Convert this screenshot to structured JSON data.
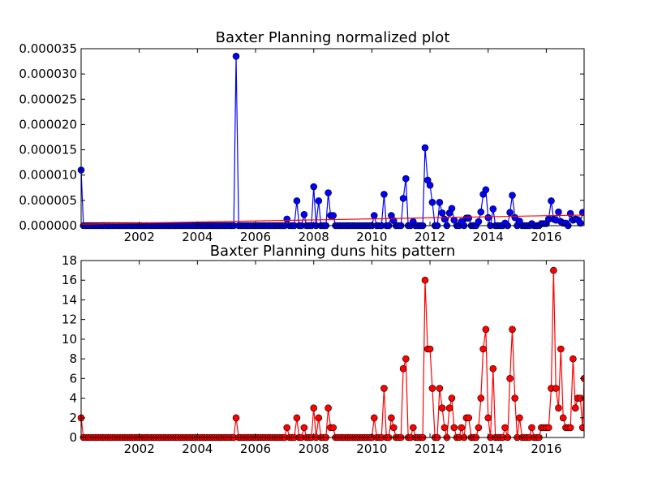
{
  "chart_data": [
    {
      "type": "line",
      "title": "Baxter Planning normalized plot",
      "xlabel": "",
      "ylabel": "",
      "xlim": [
        2000.0,
        2017.3
      ],
      "ylim": [
        0,
        3.5e-05
      ],
      "grid": false,
      "x_ticks": [
        2002,
        2004,
        2006,
        2008,
        2010,
        2012,
        2014,
        2016
      ],
      "y_ticks": [
        {
          "value": 0.0,
          "label": "0.000000"
        },
        {
          "value": 5e-06,
          "label": "0.000005"
        },
        {
          "value": 1e-05,
          "label": "0.000010"
        },
        {
          "value": 1.5e-05,
          "label": "0.000015"
        },
        {
          "value": 2e-05,
          "label": "0.000020"
        },
        {
          "value": 2.5e-05,
          "label": "0.000025"
        },
        {
          "value": 3e-05,
          "label": "0.000030"
        },
        {
          "value": 3.5e-05,
          "label": "0.000035"
        }
      ],
      "series": [
        {
          "color": "#0000ff",
          "marker": "circle",
          "points": [
            [
              2000.0,
              1.1e-05
            ],
            [
              2005.33,
              3.35e-05
            ],
            [
              2007.08,
              1.3e-06
            ],
            [
              2007.42,
              4.9e-06
            ],
            [
              2007.67,
              2.2e-06
            ],
            [
              2008.0,
              7.7e-06
            ],
            [
              2008.17,
              4.9e-06
            ],
            [
              2008.5,
              6.5e-06
            ],
            [
              2008.58,
              2e-06
            ],
            [
              2008.67,
              2e-06
            ],
            [
              2010.08,
              2e-06
            ],
            [
              2010.42,
              6.2e-06
            ],
            [
              2010.67,
              2e-06
            ],
            [
              2010.75,
              1e-06
            ],
            [
              2011.08,
              5.4e-06
            ],
            [
              2011.17,
              9.3e-06
            ],
            [
              2011.42,
              8e-07
            ],
            [
              2011.83,
              1.54e-05
            ],
            [
              2011.92,
              9e-06
            ],
            [
              2012.0,
              8e-06
            ],
            [
              2012.08,
              4.6e-06
            ],
            [
              2012.33,
              4.6e-06
            ],
            [
              2012.42,
              2.5e-06
            ],
            [
              2012.5,
              1.3e-06
            ],
            [
              2012.67,
              2.5e-06
            ],
            [
              2012.75,
              3.4e-06
            ],
            [
              2012.83,
              1.1e-06
            ],
            [
              2013.08,
              8e-07
            ],
            [
              2013.25,
              1.5e-06
            ],
            [
              2013.33,
              1.5e-06
            ],
            [
              2013.67,
              8e-07
            ],
            [
              2013.75,
              2.7e-06
            ],
            [
              2013.83,
              6.2e-06
            ],
            [
              2013.92,
              7.1e-06
            ],
            [
              2014.0,
              1.6e-06
            ],
            [
              2014.17,
              3.3e-06
            ],
            [
              2014.58,
              5e-07
            ],
            [
              2014.75,
              2.6e-06
            ],
            [
              2014.83,
              6e-06
            ],
            [
              2014.92,
              1.6e-06
            ],
            [
              2015.08,
              9e-07
            ],
            [
              2015.5,
              4e-07
            ],
            [
              2015.83,
              4e-07
            ],
            [
              2015.92,
              4e-07
            ],
            [
              2016.0,
              4e-07
            ],
            [
              2016.08,
              1.3e-06
            ],
            [
              2016.17,
              4.9e-06
            ],
            [
              2016.25,
              1.3e-06
            ],
            [
              2016.33,
              1.1e-06
            ],
            [
              2016.42,
              2.7e-06
            ],
            [
              2016.5,
              8e-07
            ],
            [
              2016.58,
              5e-07
            ],
            [
              2016.67,
              5e-07
            ],
            [
              2016.83,
              2.4e-06
            ],
            [
              2016.92,
              1.1e-06
            ],
            [
              2017.0,
              1.3e-06
            ],
            [
              2017.08,
              1.2e-06
            ],
            [
              2017.17,
              5e-07
            ],
            [
              2017.25,
              2.6e-06
            ],
            [
              2017.3,
              4.7e-06
            ]
          ]
        },
        {
          "color": "#ff0000",
          "marker": "none",
          "points": [
            [
              2000.0,
              3e-07
            ],
            [
              2017.3,
              2.1e-06
            ]
          ]
        }
      ]
    },
    {
      "type": "line",
      "title": "Baxter Planning duns hits pattern",
      "xlabel": "",
      "ylabel": "",
      "xlim": [
        2000.0,
        2017.3
      ],
      "ylim": [
        0,
        18
      ],
      "grid": false,
      "x_ticks": [
        2002,
        2004,
        2006,
        2008,
        2010,
        2012,
        2014,
        2016
      ],
      "y_ticks": [
        {
          "value": 0,
          "label": "0"
        },
        {
          "value": 2,
          "label": "2"
        },
        {
          "value": 4,
          "label": "4"
        },
        {
          "value": 6,
          "label": "6"
        },
        {
          "value": 8,
          "label": "8"
        },
        {
          "value": 10,
          "label": "10"
        },
        {
          "value": 12,
          "label": "12"
        },
        {
          "value": 14,
          "label": "14"
        },
        {
          "value": 16,
          "label": "16"
        },
        {
          "value": 18,
          "label": "18"
        }
      ],
      "monthly_start": 2000.0,
      "nonzero_months": {
        "2000.0": 2,
        "2005.33": 2,
        "2007.08": 1,
        "2007.42": 2,
        "2007.67": 1,
        "2008.0": 3,
        "2008.17": 2,
        "2008.5": 3,
        "2008.58": 1,
        "2008.67": 1,
        "2010.08": 2,
        "2010.42": 5,
        "2010.67": 2,
        "2010.75": 1,
        "2011.08": 7,
        "2011.17": 8,
        "2011.42": 1,
        "2011.83": 16,
        "2011.92": 9,
        "2012.0": 9,
        "2012.08": 5,
        "2012.33": 5,
        "2012.42": 3,
        "2012.5": 1,
        "2012.67": 3,
        "2012.75": 4,
        "2012.83": 1,
        "2013.08": 1,
        "2013.25": 2,
        "2013.33": 2,
        "2013.67": 1,
        "2013.75": 4,
        "2013.83": 9,
        "2013.92": 11,
        "2014.0": 2,
        "2014.17": 7,
        "2014.58": 1,
        "2014.75": 6,
        "2014.83": 11,
        "2014.92": 4,
        "2015.08": 2,
        "2015.5": 1,
        "2015.83": 1,
        "2015.92": 1,
        "2016.0": 1,
        "2016.08": 1,
        "2016.17": 5,
        "2016.25": 17,
        "2016.33": 5,
        "2016.42": 3,
        "2016.5": 9,
        "2016.58": 2,
        "2016.67": 1,
        "2016.75": 1,
        "2016.83": 1,
        "2016.92": 8,
        "2017.0": 3,
        "2017.08": 4,
        "2017.17": 4,
        "2017.25": 1,
        "2017.3": 6
      },
      "series": [
        {
          "color": "#ff0000",
          "marker": "circle",
          "points": []
        }
      ]
    }
  ]
}
